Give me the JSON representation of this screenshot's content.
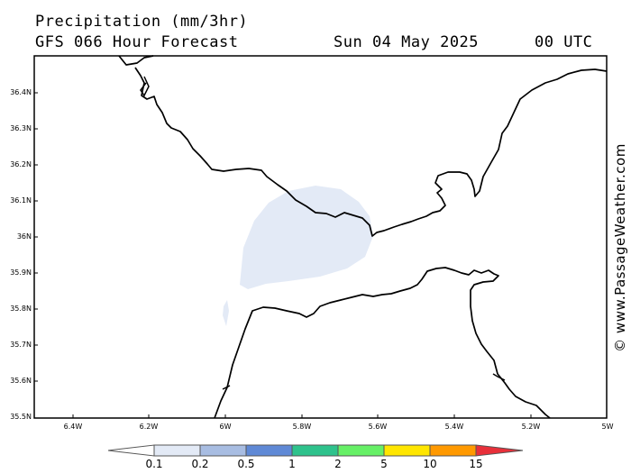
{
  "header": {
    "title": "Precipitation (mm/3hr)",
    "model": "GFS 066 Hour Forecast",
    "date": "Sun 04 May 2025",
    "time": "00 UTC"
  },
  "map": {
    "lat_labels": [
      "36.4N",
      "36.3N",
      "36.2N",
      "36.1N",
      "36N",
      "35.9N",
      "35.8N",
      "35.7N",
      "35.6N",
      "35.5N"
    ],
    "lon_labels": [
      "6.4W",
      "6.2W",
      "6W",
      "5.8W",
      "5.6W",
      "5.4W",
      "5.2W",
      "5W"
    ],
    "land_color": "#ffffff",
    "coast_color": "#000000",
    "precip_color": "#e3eaf6"
  },
  "watermark": "© www.PassageWeather.com",
  "colorbar": {
    "labels": [
      "0.1",
      "0.2",
      "0.5",
      "1",
      "2",
      "5",
      "10",
      "15"
    ],
    "colors": [
      "#ffffff",
      "#e3eaf6",
      "#a8bde2",
      "#5f89d6",
      "#2ec28c",
      "#66f066",
      "#ffe600",
      "#ff9900",
      "#e8303a"
    ]
  }
}
